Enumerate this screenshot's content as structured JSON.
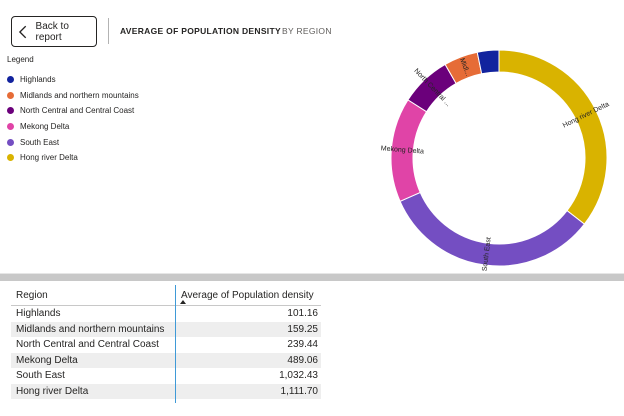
{
  "header": {
    "back_label": "Back to report",
    "title": "AVERAGE OF POPULATION DENSITY",
    "subtitle": "BY REGION"
  },
  "legend": {
    "title": "Legend",
    "items": [
      {
        "label": "Highlands",
        "color": "#12239E"
      },
      {
        "label": "Midlands and northern mountains",
        "color": "#E66C37"
      },
      {
        "label": "North Central and Central Coast",
        "color": "#6B007B"
      },
      {
        "label": "Mekong Delta",
        "color": "#E044A7"
      },
      {
        "label": "South East",
        "color": "#744EC2"
      },
      {
        "label": "Hong river Delta",
        "color": "#D9B300"
      }
    ]
  },
  "chart_data": {
    "type": "pie",
    "title": "AVERAGE OF POPULATION DENSITY",
    "categories": [
      "Hong river Delta",
      "South East",
      "Mekong Delta",
      "North Central and Central Coast",
      "Midlands and northern mountains",
      "Highlands"
    ],
    "values": [
      1111.7,
      1032.43,
      489.06,
      239.44,
      159.25,
      101.16
    ],
    "slice_labels": [
      "Hong river Delta",
      "South East",
      "Mekong Delta",
      "North Central ...",
      "Midl...",
      ""
    ],
    "colors": [
      "#D9B300",
      "#744EC2",
      "#E044A7",
      "#6B007B",
      "#E66C37",
      "#12239E"
    ],
    "donut": true
  },
  "table": {
    "headers": [
      "Region",
      "Average of Population density"
    ],
    "rows": [
      {
        "region": "Highlands",
        "value": "101.16"
      },
      {
        "region": "Midlands and northern mountains",
        "value": "159.25"
      },
      {
        "region": "North Central and Central Coast",
        "value": "239.44"
      },
      {
        "region": "Mekong Delta",
        "value": "489.06"
      },
      {
        "region": "South East",
        "value": "1,032.43"
      },
      {
        "region": "Hong river Delta",
        "value": "1,111.70"
      }
    ]
  }
}
